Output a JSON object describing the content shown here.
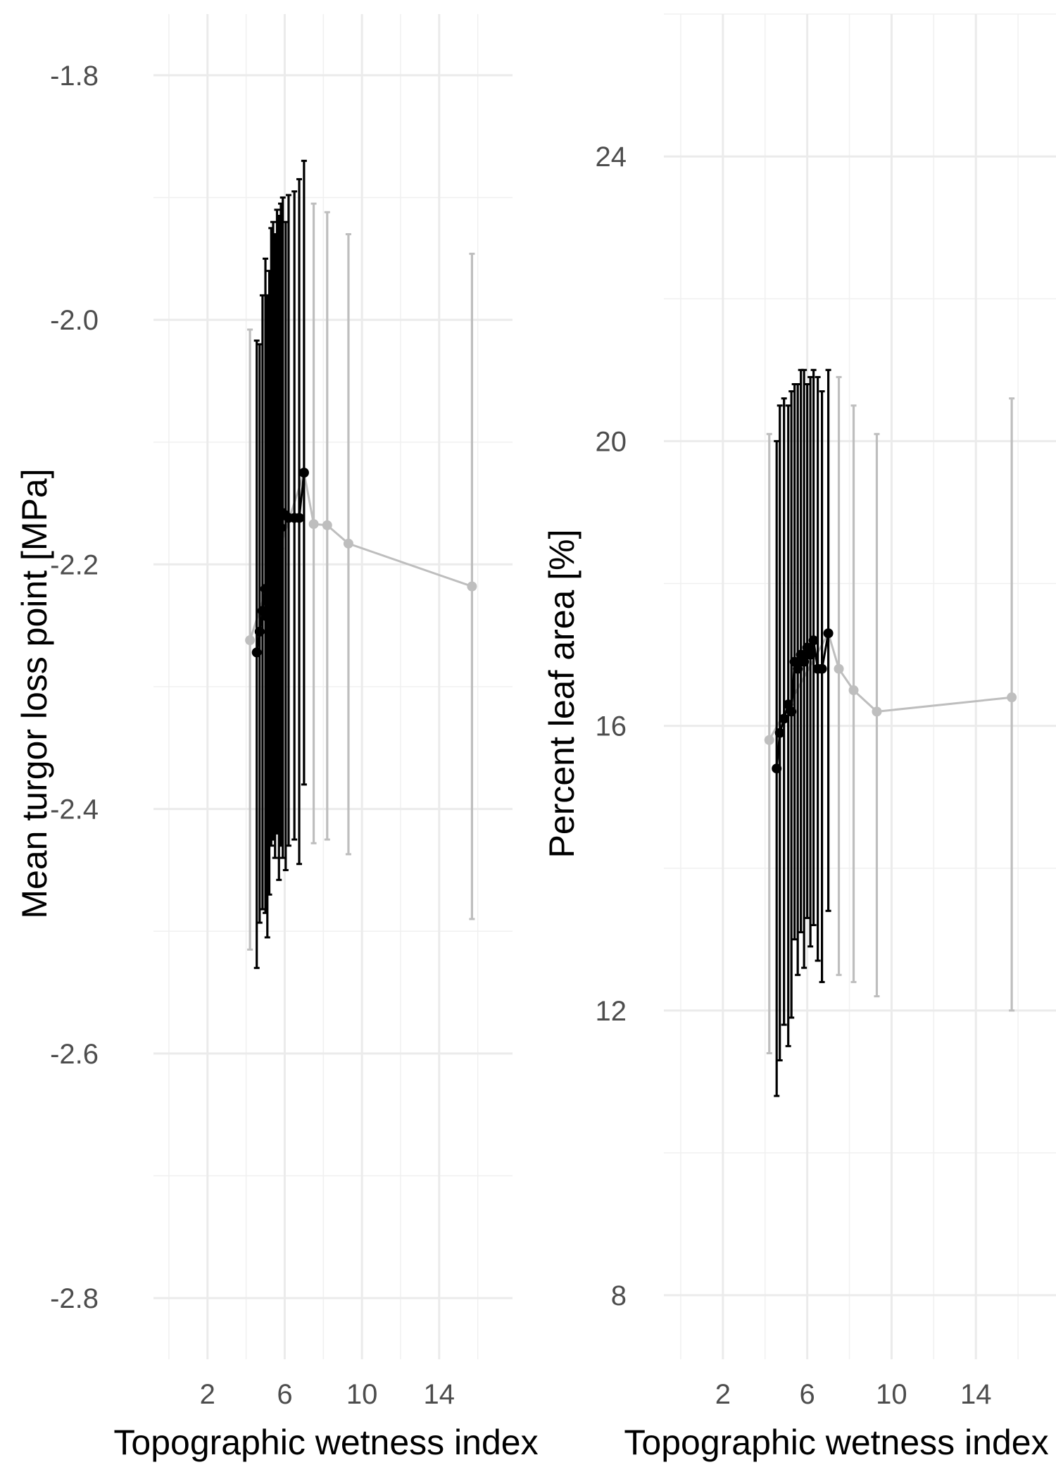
{
  "chart_data": [
    {
      "type": "line",
      "title": "",
      "xlabel": "Topographic wetness index",
      "ylabel": "Mean turgor loss point [MPa]",
      "xlim": [
        -0.8,
        17.8
      ],
      "ylim": [
        -2.85,
        -1.75
      ],
      "x_ticks": [
        2,
        6,
        10,
        14
      ],
      "x_tick_labels": [
        "2",
        "6",
        "10",
        "14"
      ],
      "y_ticks": [
        -1.8,
        -2.0,
        -2.2,
        -2.4,
        -2.6,
        -2.8
      ],
      "y_tick_labels": [
        "-1.8",
        "-2.0",
        "-2.2",
        "-2.4",
        "-2.6",
        "-2.8"
      ],
      "grid": true,
      "legend": "none",
      "series": [
        {
          "color": "#bebebe",
          "points": [
            {
              "x": 4.2,
              "y": -2.262,
              "lo": -2.515,
              "hi": -2.008
            },
            {
              "x": 7.0,
              "y": -2.125,
              "lo": -2.38,
              "hi": -1.87
            },
            {
              "x": 7.5,
              "y": -2.167,
              "lo": -2.428,
              "hi": -1.905
            },
            {
              "x": 8.2,
              "y": -2.168,
              "lo": -2.425,
              "hi": -1.912
            },
            {
              "x": 9.3,
              "y": -2.183,
              "lo": -2.437,
              "hi": -1.93
            },
            {
              "x": 15.7,
              "y": -2.218,
              "lo": -2.49,
              "hi": -1.946
            }
          ]
        },
        {
          "color": "#000000",
          "points": [
            {
              "x": 4.55,
              "y": -2.272,
              "lo": -2.53,
              "hi": -2.017
            },
            {
              "x": 4.7,
              "y": -2.255,
              "lo": -2.493,
              "hi": -2.02
            },
            {
              "x": 4.85,
              "y": -2.238,
              "lo": -2.482,
              "hi": -1.98
            },
            {
              "x": 5.0,
              "y": -2.22,
              "lo": -2.485,
              "hi": -1.95
            },
            {
              "x": 5.1,
              "y": -2.243,
              "lo": -2.505,
              "hi": -1.98
            },
            {
              "x": 5.2,
              "y": -2.215,
              "lo": -2.47,
              "hi": -1.96
            },
            {
              "x": 5.3,
              "y": -2.19,
              "lo": -2.43,
              "hi": -1.925
            },
            {
              "x": 5.4,
              "y": -2.175,
              "lo": -2.425,
              "hi": -1.92
            },
            {
              "x": 5.5,
              "y": -2.19,
              "lo": -2.44,
              "hi": -1.93
            },
            {
              "x": 5.6,
              "y": -2.168,
              "lo": -2.42,
              "hi": -1.91
            },
            {
              "x": 5.7,
              "y": -2.187,
              "lo": -2.458,
              "hi": -1.915
            },
            {
              "x": 5.8,
              "y": -2.17,
              "lo": -2.43,
              "hi": -1.905
            },
            {
              "x": 5.9,
              "y": -2.158,
              "lo": -2.44,
              "hi": -1.9
            },
            {
              "x": 6.05,
              "y": -2.16,
              "lo": -2.45,
              "hi": -1.92
            },
            {
              "x": 6.2,
              "y": -2.162,
              "lo": -2.43,
              "hi": -1.898
            },
            {
              "x": 6.5,
              "y": -2.162,
              "lo": -2.425,
              "hi": -1.895
            },
            {
              "x": 6.75,
              "y": -2.162,
              "lo": -2.445,
              "hi": -1.885
            },
            {
              "x": 7.0,
              "y": -2.125,
              "lo": -2.38,
              "hi": -1.87
            }
          ]
        }
      ]
    },
    {
      "type": "line",
      "title": "",
      "xlabel": "Topographic wetness index",
      "ylabel": "Percent leaf area [%]",
      "xlim": [
        -0.8,
        17.8
      ],
      "ylim": [
        7.1,
        26.0
      ],
      "x_ticks": [
        2,
        6,
        10,
        14
      ],
      "x_tick_labels": [
        "2",
        "6",
        "10",
        "14"
      ],
      "y_ticks": [
        8,
        12,
        16,
        20,
        24
      ],
      "y_tick_labels": [
        "8",
        "12",
        "16",
        "20",
        "24"
      ],
      "grid": true,
      "legend": "none",
      "series": [
        {
          "color": "#bebebe",
          "points": [
            {
              "x": 4.2,
              "y": 15.8,
              "lo": 11.4,
              "hi": 20.1
            },
            {
              "x": 7.0,
              "y": 17.3,
              "lo": 13.4,
              "hi": 21.0
            },
            {
              "x": 7.5,
              "y": 16.8,
              "lo": 12.5,
              "hi": 20.9
            },
            {
              "x": 8.2,
              "y": 16.5,
              "lo": 12.4,
              "hi": 20.5
            },
            {
              "x": 9.3,
              "y": 16.2,
              "lo": 12.2,
              "hi": 20.1
            },
            {
              "x": 15.7,
              "y": 16.4,
              "lo": 12.0,
              "hi": 20.6
            }
          ]
        },
        {
          "color": "#000000",
          "points": [
            {
              "x": 4.55,
              "y": 15.4,
              "lo": 10.8,
              "hi": 20.0
            },
            {
              "x": 4.7,
              "y": 15.9,
              "lo": 11.3,
              "hi": 20.5
            },
            {
              "x": 4.9,
              "y": 16.1,
              "lo": 11.8,
              "hi": 20.6
            },
            {
              "x": 5.1,
              "y": 16.3,
              "lo": 11.5,
              "hi": 20.5
            },
            {
              "x": 5.25,
              "y": 16.2,
              "lo": 11.9,
              "hi": 20.7
            },
            {
              "x": 5.4,
              "y": 16.9,
              "lo": 13.0,
              "hi": 20.8
            },
            {
              "x": 5.55,
              "y": 16.8,
              "lo": 12.5,
              "hi": 20.8
            },
            {
              "x": 5.7,
              "y": 17.0,
              "lo": 13.1,
              "hi": 21.0
            },
            {
              "x": 5.85,
              "y": 16.9,
              "lo": 12.6,
              "hi": 21.0
            },
            {
              "x": 6.0,
              "y": 17.1,
              "lo": 13.3,
              "hi": 20.8
            },
            {
              "x": 6.15,
              "y": 17.0,
              "lo": 12.9,
              "hi": 20.9
            },
            {
              "x": 6.3,
              "y": 17.2,
              "lo": 13.2,
              "hi": 21.0
            },
            {
              "x": 6.5,
              "y": 16.8,
              "lo": 12.7,
              "hi": 20.9
            },
            {
              "x": 6.7,
              "y": 16.8,
              "lo": 12.4,
              "hi": 20.7
            },
            {
              "x": 7.0,
              "y": 17.3,
              "lo": 13.4,
              "hi": 21.0
            }
          ]
        }
      ]
    }
  ]
}
